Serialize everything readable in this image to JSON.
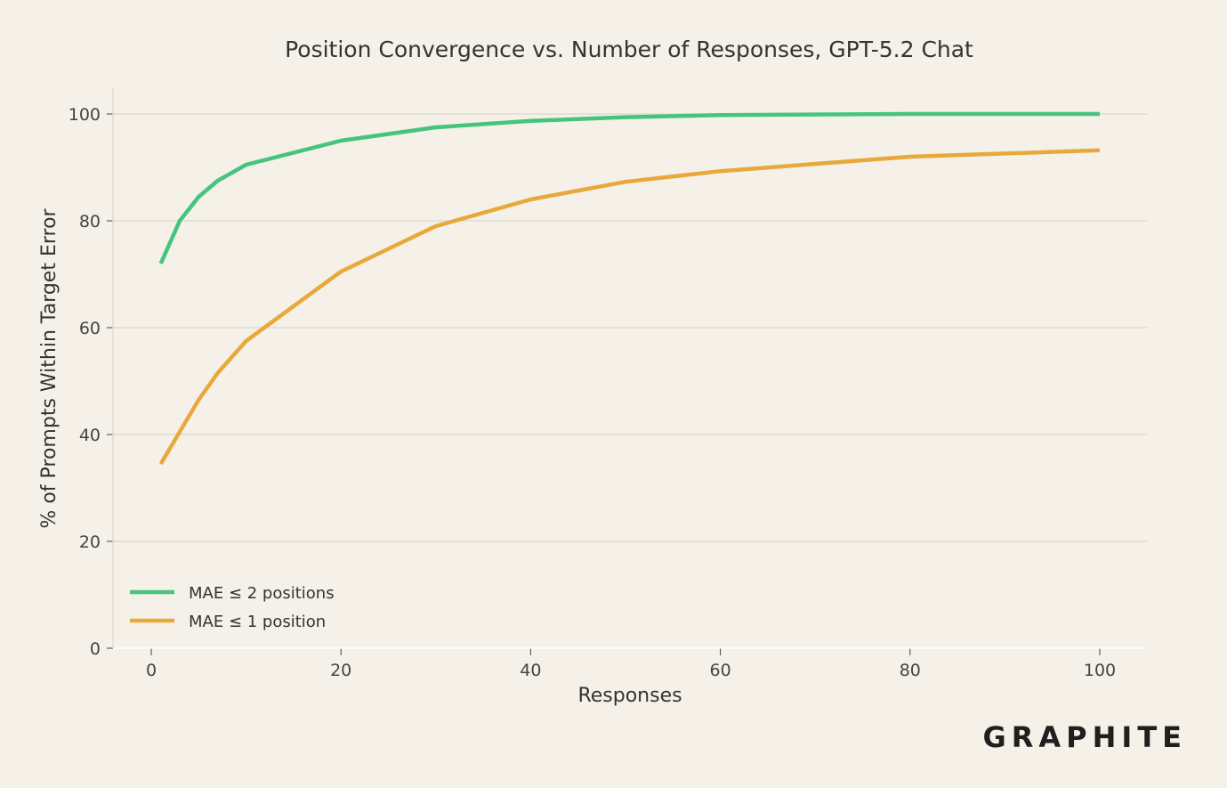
{
  "chart_data": {
    "type": "line",
    "title": "Position Convergence vs. Number of Responses, GPT-5.2 Chat",
    "xlabel": "Responses",
    "ylabel": "% of Prompts Within Target Error",
    "xlim": [
      -4,
      105
    ],
    "ylim": [
      0,
      105
    ],
    "xticks": [
      "0",
      "20",
      "40",
      "60",
      "80",
      "100"
    ],
    "yticks": [
      "0",
      "20",
      "40",
      "60",
      "80",
      "100"
    ],
    "grid": "horizontal",
    "legend_position": "lower-left",
    "series": [
      {
        "name": "MAE ≤ 2 positions",
        "color": "#45c47e",
        "x": [
          1,
          3,
          5,
          7,
          10,
          20,
          30,
          40,
          50,
          60,
          80,
          100
        ],
        "y": [
          72,
          80,
          84.5,
          87.5,
          90.5,
          95,
          97.5,
          98.7,
          99.4,
          99.8,
          100,
          100
        ]
      },
      {
        "name": "MAE ≤ 1 position",
        "color": "#e8a93a",
        "x": [
          1,
          3,
          5,
          7,
          10,
          20,
          30,
          40,
          50,
          60,
          80,
          100
        ],
        "y": [
          34.5,
          40.5,
          46.5,
          51.5,
          57.5,
          70.5,
          79,
          84,
          87.3,
          89.3,
          92,
          93.2
        ]
      }
    ]
  },
  "brand": {
    "logo_text": "GRAPHITE"
  }
}
